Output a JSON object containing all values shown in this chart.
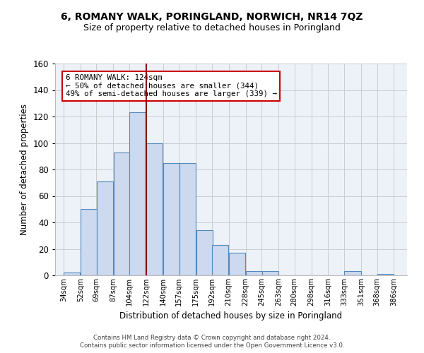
{
  "title": "6, ROMANY WALK, PORINGLAND, NORWICH, NR14 7QZ",
  "subtitle": "Size of property relative to detached houses in Poringland",
  "xlabel": "Distribution of detached houses by size in Poringland",
  "ylabel": "Number of detached properties",
  "bar_left_edges": [
    34,
    52,
    69,
    87,
    104,
    122,
    140,
    157,
    175,
    192,
    210,
    228,
    245,
    263,
    280,
    298,
    316,
    333,
    351,
    368
  ],
  "bar_heights": [
    2,
    50,
    71,
    93,
    123,
    100,
    85,
    85,
    34,
    23,
    17,
    3,
    3,
    0,
    0,
    0,
    0,
    3,
    0,
    1
  ],
  "bin_width": 18,
  "bar_facecolor": "#ccd9ee",
  "bar_edgecolor": "#5588bb",
  "vline_x": 122,
  "vline_color": "#880000",
  "annotation_text": "6 ROMANY WALK: 124sqm\n← 50% of detached houses are smaller (344)\n49% of semi-detached houses are larger (339) →",
  "annotation_box_edgecolor": "#cc0000",
  "yticks": [
    0,
    20,
    40,
    60,
    80,
    100,
    120,
    140,
    160
  ],
  "xtick_labels": [
    "34sqm",
    "52sqm",
    "69sqm",
    "87sqm",
    "104sqm",
    "122sqm",
    "140sqm",
    "157sqm",
    "175sqm",
    "192sqm",
    "210sqm",
    "228sqm",
    "245sqm",
    "263sqm",
    "280sqm",
    "298sqm",
    "316sqm",
    "333sqm",
    "351sqm",
    "368sqm",
    "386sqm"
  ],
  "xtick_positions": [
    34,
    52,
    69,
    87,
    104,
    122,
    140,
    157,
    175,
    192,
    210,
    228,
    245,
    263,
    280,
    298,
    316,
    333,
    351,
    368,
    386
  ],
  "xlim": [
    25,
    400
  ],
  "ylim": [
    0,
    160
  ],
  "grid_color": "#cccccc",
  "background_color": "#edf2f9",
  "footer_line1": "Contains HM Land Registry data © Crown copyright and database right 2024.",
  "footer_line2": "Contains public sector information licensed under the Open Government Licence v3.0."
}
